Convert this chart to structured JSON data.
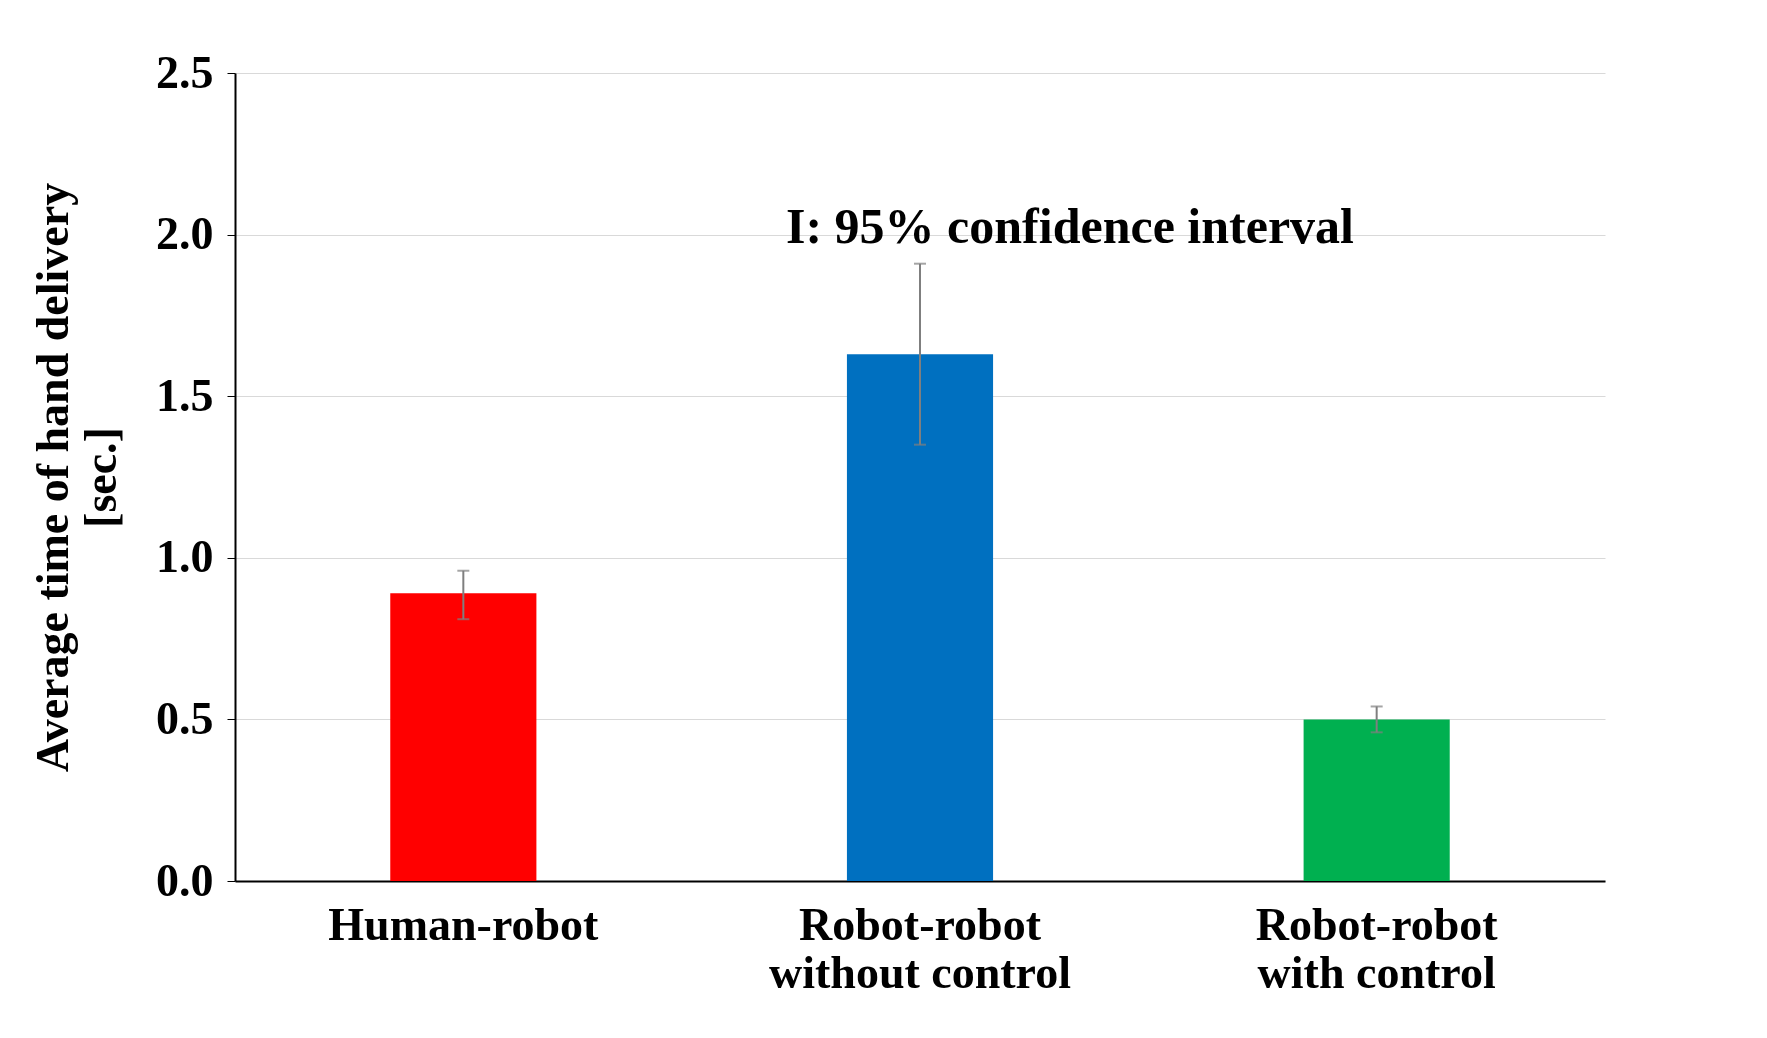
{
  "chart_data": {
    "type": "bar",
    "ylabel": "Average time of hand delivery\n[sec.]",
    "categories": [
      "Human-robot",
      "Robot-robot\nwithout control",
      "Robot-robot\nwith control"
    ],
    "values": [
      0.89,
      1.63,
      0.5
    ],
    "colors": [
      "#ff0000",
      "#0070c0",
      "#00b050"
    ],
    "errors": [
      [
        0.81,
        0.96
      ],
      [
        1.35,
        1.91
      ],
      [
        0.46,
        0.54
      ]
    ],
    "ylim": [
      0,
      2.5
    ],
    "yticks": [
      {
        "value": 0,
        "label": "0.0"
      },
      {
        "value": 0.5,
        "label": "0.5"
      },
      {
        "value": 1,
        "label": "1.0"
      },
      {
        "value": 1.5,
        "label": "1.5"
      },
      {
        "value": 2,
        "label": "2.0"
      },
      {
        "value": 2.5,
        "label": "2.5"
      }
    ],
    "grid": "y",
    "annotations": [
      "I: 95% confidence interval"
    ]
  }
}
